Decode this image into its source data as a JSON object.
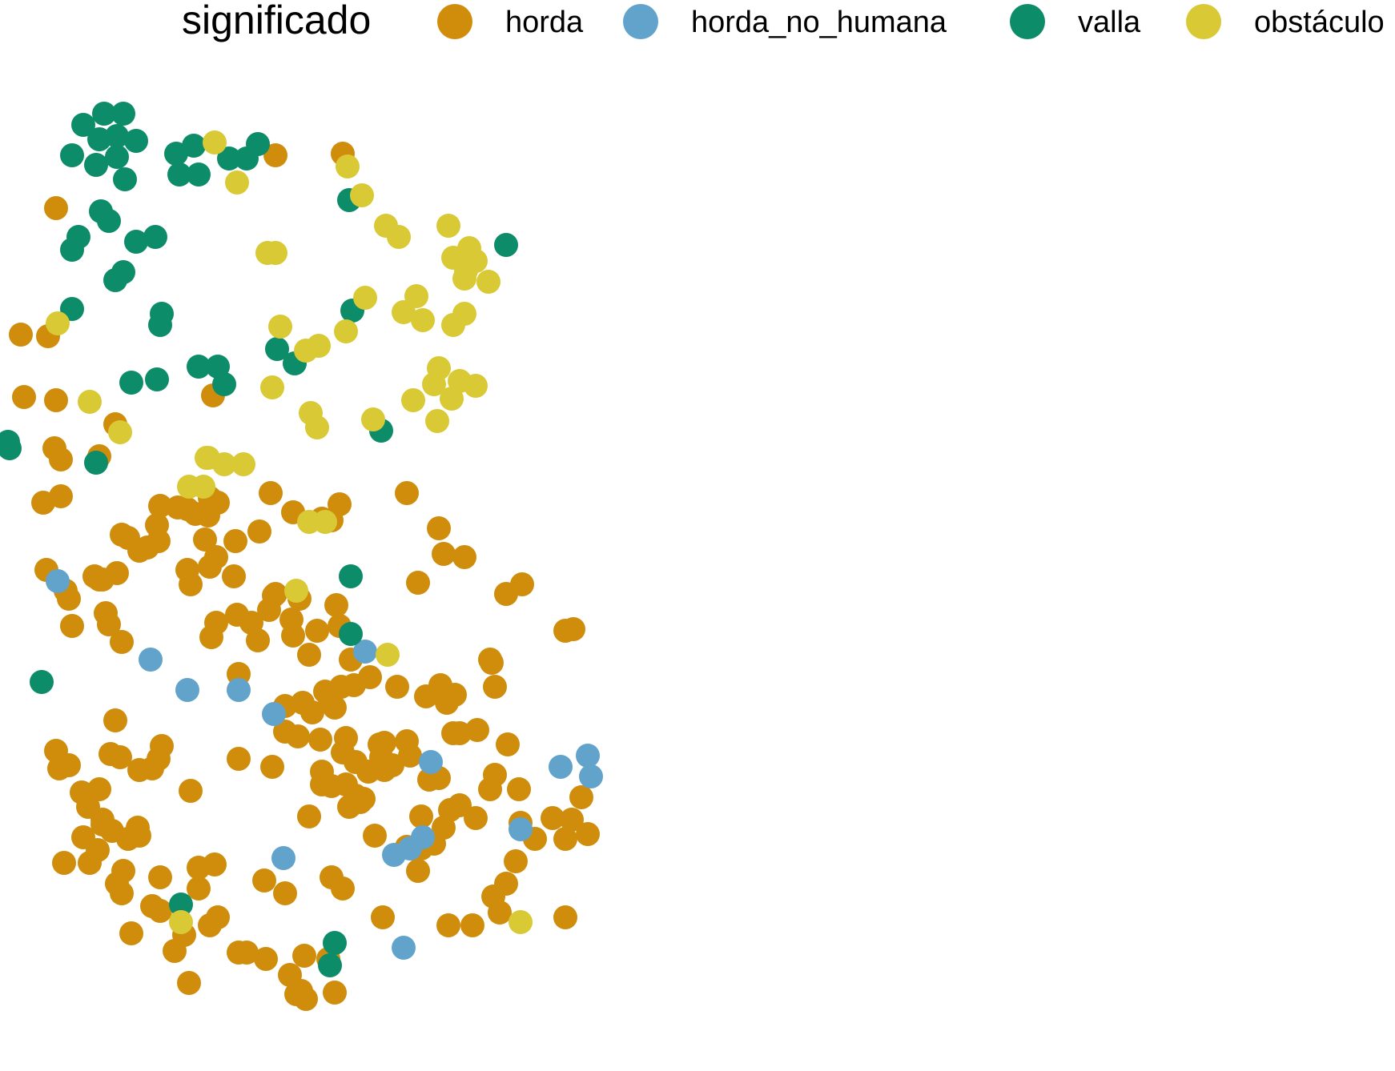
{
  "chart_data": {
    "type": "scatter",
    "legend_placement": "top",
    "grid": false,
    "axes_visible": false,
    "xlim": [
      0,
      870
    ],
    "ylim": [
      0,
      669
    ],
    "legend": {
      "title": "significado",
      "entries": [
        {
          "key": "horda",
          "label": "horda",
          "color": "#D08D0C"
        },
        {
          "key": "horda_no_humana",
          "label": "horda_no_humana",
          "color": "#62A3CC"
        },
        {
          "key": "valla",
          "label": "valla",
          "color": "#0C8C68"
        },
        {
          "key": "obstaculo",
          "label": "obstáculo",
          "color": "#D9C934"
        }
      ]
    },
    "series": [
      {
        "key": "horda",
        "name": "horda",
        "color": "#D08D0C",
        "points": [
          [
            239,
            573
          ],
          [
            40,
            539
          ],
          [
            35,
            469
          ],
          [
            72,
            450
          ],
          [
            76,
            401
          ],
          [
            68,
            390
          ],
          [
            149,
            421
          ],
          [
            193,
            510
          ],
          [
            353,
            394
          ],
          [
            358,
            393
          ],
          [
            326,
            365
          ],
          [
            290,
            348
          ],
          [
            277,
            346
          ],
          [
            274,
            330
          ],
          [
            207,
            325
          ],
          [
            212,
            315
          ],
          [
            201,
            324
          ],
          [
            183,
            320
          ],
          [
            169,
            308
          ],
          [
            162,
            332
          ],
          [
            131,
            311
          ],
          [
            130,
            322
          ],
          [
            122,
            321
          ],
          [
            111,
            317
          ],
          [
            100,
            316
          ],
          [
            98,
            328
          ],
          [
            76,
            334
          ],
          [
            99,
            338
          ],
          [
            80,
            336
          ],
          [
            87,
            344
          ],
          [
            92,
            342
          ],
          [
            73,
            358
          ],
          [
            64,
            362
          ],
          [
            59,
            360
          ],
          [
            66,
            383
          ],
          [
            45,
            391
          ],
          [
            41,
            369
          ],
          [
            43,
            374
          ],
          [
            29,
            356
          ],
          [
            27,
            314
          ],
          [
            35,
            250
          ],
          [
            15,
            248
          ],
          [
            13,
            209
          ],
          [
            34,
            280
          ],
          [
            38,
            310
          ],
          [
            38,
            287
          ],
          [
            117,
            318
          ],
          [
            136,
            314
          ],
          [
            128,
            337
          ],
          [
            147,
            338
          ],
          [
            135,
            348
          ],
          [
            131,
            354
          ],
          [
            146,
            360
          ],
          [
            117,
            356
          ],
          [
            119,
            365
          ],
          [
            135,
            389
          ],
          [
            132,
            398
          ],
          [
            148,
            384
          ],
          [
            157,
            389
          ],
          [
            161,
            400
          ],
          [
            183,
            397
          ],
          [
            198,
            394
          ],
          [
            171,
            372
          ],
          [
            172,
            371
          ],
          [
            187,
            374
          ],
          [
            182,
            387
          ],
          [
            168,
            381
          ],
          [
            210,
            378
          ],
          [
            212,
            391
          ],
          [
            193,
            409
          ],
          [
            203,
            432
          ],
          [
            189,
            439
          ],
          [
            209,
            442
          ],
          [
            178,
            457
          ],
          [
            186,
            460
          ],
          [
            201,
            482
          ],
          [
            201,
            490
          ],
          [
            207,
            491
          ],
          [
            216,
            490
          ],
          [
            222,
            476
          ],
          [
            227,
            499
          ],
          [
            240,
            464
          ],
          [
            237,
            465
          ],
          [
            238,
            473
          ],
          [
            240,
            481
          ],
          [
            256,
            472
          ],
          [
            274,
            486
          ],
          [
            268,
            487
          ],
          [
            287,
            503
          ],
          [
            297,
            511
          ],
          [
            281,
            506
          ],
          [
            271,
            527
          ],
          [
            257,
            530
          ],
          [
            261,
            544
          ],
          [
            316,
            552
          ],
          [
            322,
            538
          ],
          [
            275,
            428
          ],
          [
            248,
            429
          ],
          [
            213,
            429
          ],
          [
            206,
            437
          ],
          [
            195,
            445
          ],
          [
            178,
            441
          ],
          [
            200,
            462
          ],
          [
            214,
            470
          ],
          [
            222,
            497
          ],
          [
            218,
            504
          ],
          [
            225,
            501
          ],
          [
            266,
            435
          ],
          [
            284,
            434
          ],
          [
            287,
            458
          ],
          [
            298,
            456
          ],
          [
            309,
            484
          ],
          [
            306,
            493
          ],
          [
            324,
            493
          ],
          [
            325,
            514
          ],
          [
            345,
            511
          ],
          [
            363,
            498
          ],
          [
            367,
            521
          ],
          [
            353,
            524
          ],
          [
            334,
            524
          ],
          [
            353,
            573
          ],
          [
            308,
            560
          ],
          [
            312,
            570
          ],
          [
            295,
            578
          ],
          [
            280,
            578
          ],
          [
            205,
            599
          ],
          [
            190,
            597
          ],
          [
            185,
            621
          ],
          [
            191,
            624
          ],
          [
            209,
            620
          ],
          [
            178,
            558
          ],
          [
            136,
            573
          ],
          [
            131,
            578
          ],
          [
            109,
            594
          ],
          [
            149,
            595
          ],
          [
            154,
            595
          ],
          [
            166,
            599
          ],
          [
            181,
            609
          ],
          [
            118,
            614
          ],
          [
            95,
            566
          ],
          [
            100,
            569
          ],
          [
            124,
            555
          ],
          [
            124,
            542
          ],
          [
            134,
            540
          ],
          [
            165,
            550
          ],
          [
            119,
            494
          ],
          [
            149,
            474
          ],
          [
            170,
            479
          ],
          [
            207,
            548
          ],
          [
            214,
            555
          ],
          [
            263,
            530
          ],
          [
            263,
            510
          ],
          [
            277,
            517
          ],
          [
            317,
            465
          ],
          [
            309,
            429
          ],
          [
            307,
            414
          ],
          [
            316,
            371
          ],
          [
            219,
            412
          ],
          [
            221,
            428
          ],
          [
            216,
            461
          ],
          [
            234,
            522
          ],
          [
            254,
            529
          ],
          [
            283,
            458
          ],
          [
            279,
            439
          ],
          [
            231,
            423
          ],
          [
            254,
            463
          ],
          [
            245,
            478
          ],
          [
            230,
            482
          ],
          [
            306,
            412
          ],
          [
            261,
            364
          ],
          [
            254,
            308
          ],
          [
            357,
            512
          ],
          [
            37,
            480
          ],
          [
            43,
            478
          ],
          [
            64,
            515
          ],
          [
            70,
            519
          ],
          [
            80,
            524
          ],
          [
            77,
            544
          ],
          [
            64,
            512
          ],
          [
            76,
            558
          ],
          [
            73,
            552
          ],
          [
            100,
            548
          ],
          [
            82,
            583
          ],
          [
            115,
            584
          ],
          [
            87,
            522
          ],
          [
            86,
            517
          ],
          [
            95,
            480
          ],
          [
            99,
            474
          ],
          [
            101,
            466
          ],
          [
            61,
            531
          ],
          [
            56,
            539
          ],
          [
            52,
            523
          ],
          [
            51,
            495
          ],
          [
            55,
            504
          ],
          [
            62,
            493
          ],
          [
            69,
            471
          ],
          [
            75,
            473
          ],
          [
            87,
            481
          ],
          [
            172,
            97
          ],
          [
            214,
            96
          ],
          [
            72,
            265
          ],
          [
            133,
            247
          ],
          [
            62,
            285
          ],
          [
            62,
            362
          ],
          [
            35,
            130
          ],
          [
            30,
            210
          ],
          [
            188,
            619
          ]
        ]
      },
      {
        "key": "horda_no_humana",
        "name": "horda_no_humana",
        "color": "#62A3CC",
        "points": [
          [
            36,
            363
          ],
          [
            94,
            412
          ],
          [
            117,
            431
          ],
          [
            149,
            431
          ],
          [
            171,
            446
          ],
          [
            228,
            407
          ],
          [
            269,
            476
          ],
          [
            177,
            536
          ],
          [
            246,
            534
          ],
          [
            256,
            530
          ],
          [
            264,
            523
          ],
          [
            252,
            592
          ],
          [
            350,
            479
          ],
          [
            367,
            472
          ],
          [
            369,
            485
          ],
          [
            325,
            518
          ]
        ]
      },
      {
        "key": "valla",
        "name": "valla",
        "color": "#0C8C68",
        "points": [
          [
            52,
            78
          ],
          [
            65,
            71
          ],
          [
            77,
            71
          ],
          [
            62,
            87
          ],
          [
            73,
            85
          ],
          [
            45,
            97
          ],
          [
            60,
            103
          ],
          [
            73,
            98
          ],
          [
            78,
            112
          ],
          [
            85,
            88
          ],
          [
            110,
            96
          ],
          [
            121,
            91
          ],
          [
            112,
            109
          ],
          [
            124,
            109
          ],
          [
            143,
            99
          ],
          [
            154,
            99
          ],
          [
            161,
            90
          ],
          [
            63,
            132
          ],
          [
            68,
            138
          ],
          [
            49,
            148
          ],
          [
            45,
            156
          ],
          [
            97,
            148
          ],
          [
            85,
            151
          ],
          [
            77,
            170
          ],
          [
            72,
            175
          ],
          [
            45,
            193
          ],
          [
            101,
            196
          ],
          [
            100,
            203
          ],
          [
            82,
            239
          ],
          [
            98,
            237
          ],
          [
            124,
            229
          ],
          [
            136,
            229
          ],
          [
            140,
            240
          ],
          [
            173,
            218
          ],
          [
            184,
            227
          ],
          [
            220,
            194
          ],
          [
            218,
            125
          ],
          [
            238,
            269
          ],
          [
            5,
            276
          ],
          [
            6,
            280
          ],
          [
            60,
            289
          ],
          [
            316,
            153
          ],
          [
            219,
            360
          ],
          [
            219,
            396
          ],
          [
            26,
            426
          ],
          [
            113,
            565
          ],
          [
            209,
            589
          ],
          [
            206,
            603
          ]
        ]
      },
      {
        "key": "obstaculo",
        "name": "obstáculo",
        "color": "#D9C934",
        "points": [
          [
            134,
            89
          ],
          [
            148,
            114
          ],
          [
            217,
            104
          ],
          [
            226,
            122
          ],
          [
            241,
            141
          ],
          [
            249,
            148
          ],
          [
            167,
            158
          ],
          [
            172,
            158
          ],
          [
            280,
            141
          ],
          [
            293,
            155
          ],
          [
            283,
            161
          ],
          [
            297,
            163
          ],
          [
            291,
            169
          ],
          [
            290,
            174
          ],
          [
            305,
            176
          ],
          [
            228,
            186
          ],
          [
            252,
            195
          ],
          [
            260,
            185
          ],
          [
            264,
            200
          ],
          [
            290,
            196
          ],
          [
            283,
            203
          ],
          [
            274,
            230
          ],
          [
            271,
            240
          ],
          [
            287,
            238
          ],
          [
            297,
            241
          ],
          [
            282,
            249
          ],
          [
            258,
            250
          ],
          [
            273,
            263
          ],
          [
            233,
            262
          ],
          [
            170,
            242
          ],
          [
            199,
            216
          ],
          [
            191,
            219
          ],
          [
            216,
            207
          ],
          [
            175,
            204
          ],
          [
            194,
            258
          ],
          [
            198,
            267
          ],
          [
            56,
            251
          ],
          [
            75,
            270
          ],
          [
            130,
            286
          ],
          [
            140,
            290
          ],
          [
            129,
            286
          ],
          [
            152,
            290
          ],
          [
            118,
            304
          ],
          [
            127,
            304
          ],
          [
            193,
            326
          ],
          [
            203,
            326
          ],
          [
            185,
            369
          ],
          [
            242,
            409
          ],
          [
            325,
            576
          ],
          [
            113,
            576
          ],
          [
            36,
            202
          ]
        ]
      }
    ]
  }
}
